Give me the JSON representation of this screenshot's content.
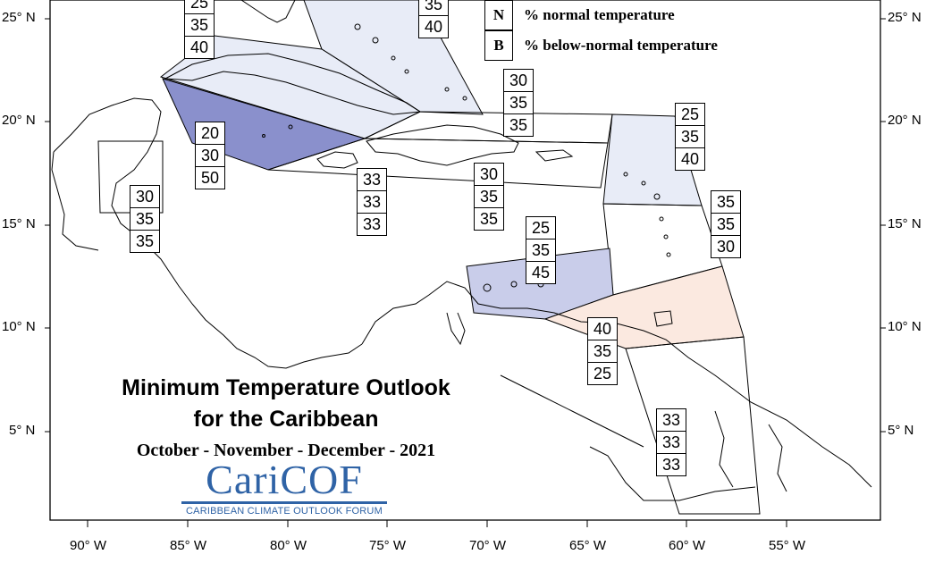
{
  "title_line1": "Minimum Temperature Outlook",
  "title_line2": "for the Caribbean",
  "period": "October - November - December - 2021",
  "logo": {
    "name": "CariCOF",
    "tagline": "CARIBBEAN CLIMATE OUTLOOK FORUM",
    "color": "#2f63a6"
  },
  "legend": [
    {
      "key": "N",
      "label": "% normal temperature"
    },
    {
      "key": "B",
      "label": "% below-normal temperature"
    }
  ],
  "lat_labels": [
    "25° N",
    "20° N",
    "15° N",
    "10° N",
    "5° N"
  ],
  "lon_labels": [
    "90° W",
    "85° W",
    "80° W",
    "75° W",
    "70° W",
    "65° W",
    "60° W",
    "55° W"
  ],
  "colors": {
    "below_light": "#e8ecf7",
    "below_mid": "#c9cdea",
    "below_strong": "#8a90cc",
    "above_light": "#fbe9e0"
  },
  "region_probs": [
    {
      "id": "bahamas-north",
      "values": [
        "",
        "35",
        "40"
      ]
    },
    {
      "id": "cuba",
      "values": [
        "25",
        "35",
        "40"
      ]
    },
    {
      "id": "turks-caicos",
      "values": [
        "30",
        "35",
        "35"
      ]
    },
    {
      "id": "cayman-jamaica-west",
      "values": [
        "20",
        "30",
        "50"
      ]
    },
    {
      "id": "belize-honduras",
      "values": [
        "30",
        "35",
        "35"
      ]
    },
    {
      "id": "jamaica",
      "values": [
        "33",
        "33",
        "33"
      ]
    },
    {
      "id": "hispaniola",
      "values": [
        "30",
        "35",
        "35"
      ]
    },
    {
      "id": "leeward-islands",
      "values": [
        "25",
        "35",
        "40"
      ]
    },
    {
      "id": "windward-east",
      "values": [
        "35",
        "35",
        "30"
      ]
    },
    {
      "id": "abc-islands",
      "values": [
        "25",
        "35",
        "45"
      ]
    },
    {
      "id": "trinidad-tobago",
      "values": [
        "40",
        "35",
        "25"
      ]
    },
    {
      "id": "guianas",
      "values": [
        "33",
        "33",
        "33"
      ]
    }
  ]
}
